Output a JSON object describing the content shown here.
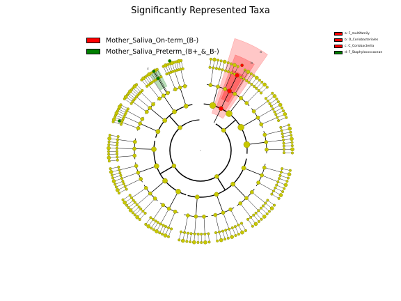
{
  "title": "Significantly Represented Taxa",
  "legend": [
    {
      "label": "Mother_Saliva_On-term_(B-)",
      "color": "#ff0000"
    },
    {
      "label": "Mother_Saliva_Preterm_(B+_&_B-)",
      "color": "#008000"
    }
  ],
  "clade_legend": [
    {
      "label": "a: F_multifamily",
      "color": "#ff0000"
    },
    {
      "label": "b: O_Coriobacteriales",
      "color": "#ff0000"
    },
    {
      "label": "c: C_Coriobacteriia",
      "color": "#ff0000"
    },
    {
      "label": "d: F_Staphylococcaceae",
      "color": "#008000"
    }
  ],
  "highlight_labels": {
    "a": "a",
    "b": "b",
    "c": "c",
    "d": "d"
  },
  "colors": {
    "node": "#c8c800",
    "node_border": "#7a7a00",
    "on_term": "#ff0000",
    "preterm": "#008000",
    "edge": "#000000"
  }
}
